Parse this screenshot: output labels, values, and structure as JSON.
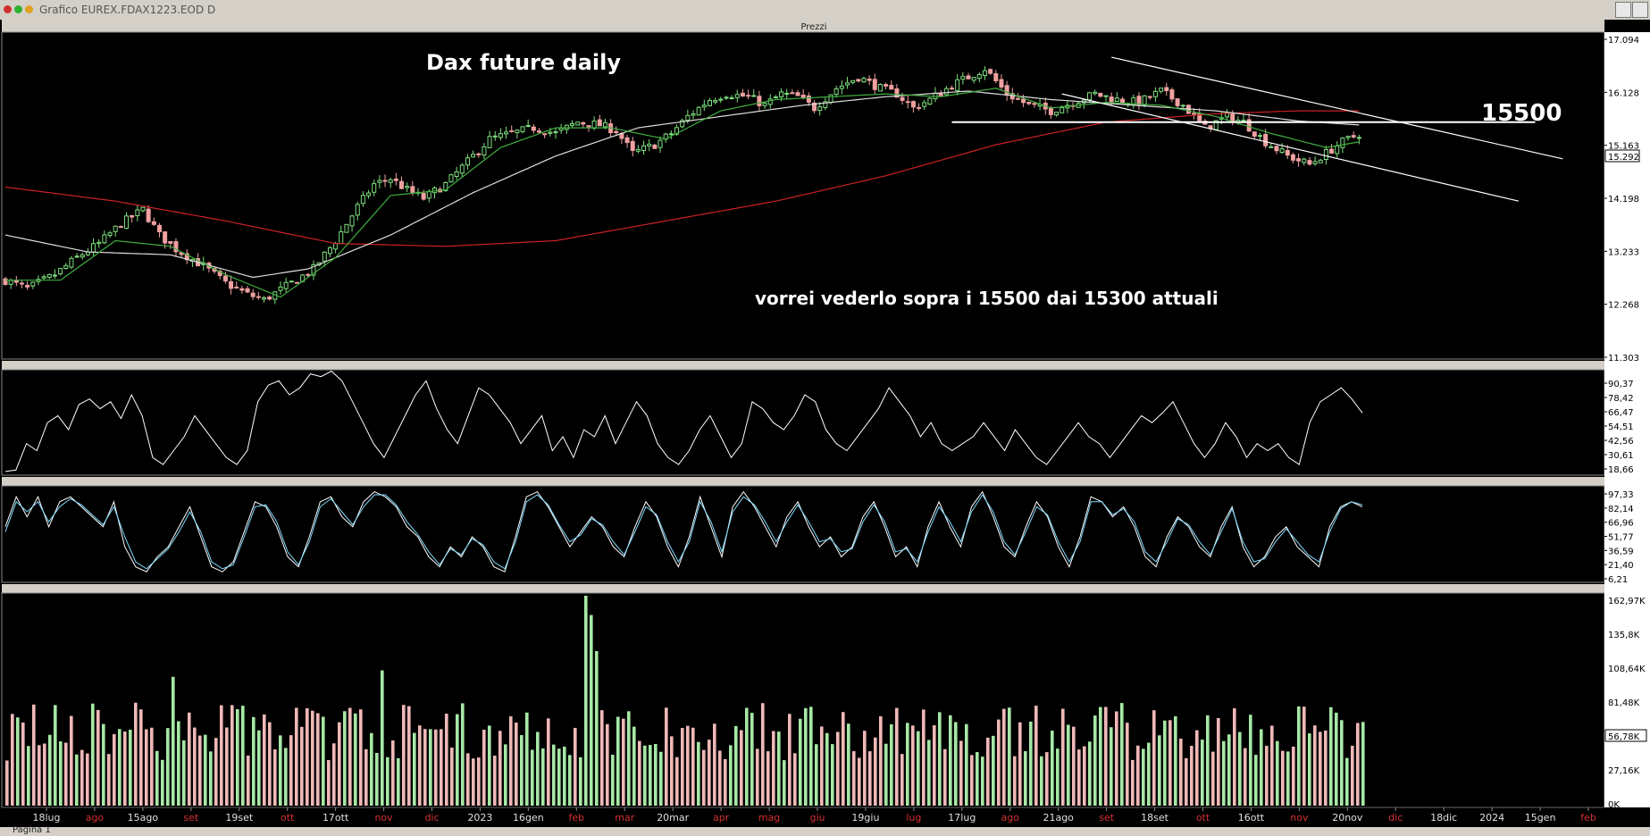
{
  "window": {
    "title": "Grafico EUREX.FDAX1223.EOD D",
    "pane_title": "Prezzi",
    "status": "Pagina 1",
    "colors": {
      "frame": "#d4d0c8",
      "background": "#000000"
    }
  },
  "annotations": {
    "title": "Dax future daily",
    "note": "vorrei vederlo sopra i 15500 dai 15300 attuali",
    "level": "15500"
  },
  "chart_data": [
    {
      "type": "candlestick",
      "title": "Dax future daily",
      "y_ticks": [
        "17.094",
        "16.128",
        "15.292",
        "15.163",
        "14.198",
        "13.233",
        "12.268",
        "11.303"
      ],
      "ylim": [
        11303,
        17094
      ],
      "last_value": "15.292",
      "series_anchors": {
        "close": [
          [
            0,
            12700
          ],
          [
            4,
            12550
          ],
          [
            9,
            12800
          ],
          [
            13,
            13100
          ],
          [
            17,
            13350
          ],
          [
            21,
            13700
          ],
          [
            25,
            13950
          ],
          [
            28,
            13500
          ],
          [
            31,
            13250
          ],
          [
            36,
            12950
          ],
          [
            40,
            12650
          ],
          [
            44,
            12450
          ],
          [
            47,
            12350
          ],
          [
            52,
            12650
          ],
          [
            56,
            12900
          ],
          [
            60,
            13400
          ],
          [
            64,
            14000
          ],
          [
            67,
            14400
          ],
          [
            70,
            14500
          ],
          [
            73,
            14300
          ],
          [
            76,
            14150
          ],
          [
            80,
            14400
          ],
          [
            84,
            14800
          ],
          [
            88,
            15200
          ],
          [
            92,
            15300
          ],
          [
            96,
            15400
          ],
          [
            100,
            15300
          ],
          [
            104,
            15500
          ],
          [
            108,
            15450
          ],
          [
            111,
            15350
          ],
          [
            114,
            14950
          ],
          [
            118,
            15100
          ],
          [
            121,
            15300
          ],
          [
            124,
            15600
          ],
          [
            128,
            15900
          ],
          [
            131,
            16000
          ],
          [
            135,
            15950
          ],
          [
            138,
            15800
          ],
          [
            141,
            16000
          ],
          [
            144,
            15950
          ],
          [
            147,
            15750
          ],
          [
            151,
            16100
          ],
          [
            155,
            16300
          ],
          [
            159,
            16100
          ],
          [
            162,
            16000
          ],
          [
            165,
            15750
          ],
          [
            168,
            15900
          ],
          [
            172,
            16150
          ],
          [
            175,
            16300
          ],
          [
            178,
            16450
          ],
          [
            182,
            16000
          ],
          [
            186,
            15800
          ],
          [
            190,
            15700
          ],
          [
            194,
            15850
          ],
          [
            198,
            16000
          ],
          [
            202,
            15900
          ],
          [
            206,
            15850
          ],
          [
            210,
            16050
          ],
          [
            214,
            15800
          ],
          [
            218,
            15400
          ],
          [
            222,
            15600
          ],
          [
            225,
            15500
          ],
          [
            229,
            15150
          ],
          [
            233,
            14900
          ],
          [
            237,
            14750
          ],
          [
            240,
            14950
          ],
          [
            243,
            15150
          ],
          [
            246,
            15292
          ]
        ],
        "ma_green": [
          [
            0,
            12700
          ],
          [
            10,
            12700
          ],
          [
            20,
            13400
          ],
          [
            30,
            13300
          ],
          [
            40,
            12800
          ],
          [
            50,
            12400
          ],
          [
            60,
            13100
          ],
          [
            70,
            14200
          ],
          [
            80,
            14300
          ],
          [
            90,
            15050
          ],
          [
            100,
            15400
          ],
          [
            110,
            15400
          ],
          [
            120,
            15200
          ],
          [
            130,
            15700
          ],
          [
            140,
            15900
          ],
          [
            150,
            15950
          ],
          [
            160,
            16000
          ],
          [
            170,
            15950
          ],
          [
            180,
            16100
          ],
          [
            190,
            15750
          ],
          [
            200,
            15850
          ],
          [
            210,
            15800
          ],
          [
            220,
            15600
          ],
          [
            230,
            15300
          ],
          [
            240,
            15050
          ],
          [
            246,
            15150
          ]
        ],
        "ma_white": [
          [
            0,
            13500
          ],
          [
            15,
            13200
          ],
          [
            30,
            13150
          ],
          [
            45,
            12750
          ],
          [
            55,
            12900
          ],
          [
            70,
            13500
          ],
          [
            85,
            14250
          ],
          [
            100,
            14900
          ],
          [
            115,
            15400
          ],
          [
            130,
            15600
          ],
          [
            145,
            15800
          ],
          [
            160,
            15950
          ],
          [
            175,
            16050
          ],
          [
            190,
            15900
          ],
          [
            205,
            15800
          ],
          [
            220,
            15700
          ],
          [
            235,
            15520
          ],
          [
            246,
            15450
          ]
        ],
        "ma_red": [
          [
            0,
            14350
          ],
          [
            20,
            14100
          ],
          [
            40,
            13750
          ],
          [
            60,
            13350
          ],
          [
            80,
            13300
          ],
          [
            100,
            13400
          ],
          [
            120,
            13750
          ],
          [
            140,
            14100
          ],
          [
            160,
            14550
          ],
          [
            180,
            15100
          ],
          [
            200,
            15500
          ],
          [
            220,
            15650
          ],
          [
            235,
            15700
          ],
          [
            246,
            15700
          ]
        ]
      },
      "lines": [
        {
          "name": "level-15500",
          "from": [
            172,
            15500
          ],
          "to": [
            278,
            15500
          ]
        },
        {
          "name": "channel-upper",
          "from": [
            201,
            16650
          ],
          "to": [
            283,
            14850
          ]
        },
        {
          "name": "channel-lower",
          "from": [
            192,
            16000
          ],
          "to": [
            275,
            14100
          ]
        }
      ]
    },
    {
      "type": "line",
      "y_ticks": [
        "90,37",
        "78,42",
        "66,47",
        "54,51",
        "42,56",
        "30,61",
        "18,66"
      ],
      "ylim": [
        18.66,
        90.37
      ],
      "series": [
        {
          "name": "",
          "color": "#ffffff",
          "values": [
            20,
            21,
            40,
            35,
            55,
            60,
            50,
            68,
            72,
            65,
            70,
            58,
            75,
            60,
            30,
            25,
            35,
            45,
            60,
            50,
            40,
            30,
            25,
            35,
            70,
            82,
            85,
            75,
            80,
            90,
            88,
            92,
            85,
            70,
            55,
            40,
            30,
            45,
            60,
            75,
            85,
            65,
            50,
            40,
            60,
            80,
            75,
            65,
            55,
            40,
            50,
            60,
            35,
            45,
            30,
            50,
            45,
            60,
            40,
            55,
            70,
            60,
            40,
            30,
            25,
            35,
            50,
            60,
            45,
            30,
            40,
            70,
            65,
            55,
            50,
            60,
            75,
            70,
            50,
            40,
            35,
            45,
            55,
            65,
            80,
            70,
            60,
            45,
            55,
            40,
            35,
            40,
            45,
            55,
            45,
            35,
            50,
            40,
            30,
            25,
            35,
            45,
            55,
            45,
            40,
            30,
            40,
            50,
            60,
            55,
            62,
            70,
            55,
            40,
            30,
            40,
            55,
            45,
            30,
            40,
            35,
            40,
            30,
            25,
            55,
            70,
            75,
            80,
            72,
            62
          ]
        }
      ]
    },
    {
      "type": "line",
      "y_ticks": [
        "97,33",
        "82,14",
        "66,96",
        "51,77",
        "36,59",
        "21,40",
        "6,21"
      ],
      "ylim": [
        6.21,
        97.33
      ],
      "series": [
        {
          "name": "",
          "color": "#ffffff",
          "values": [
            60,
            90,
            70,
            90,
            60,
            85,
            90,
            80,
            70,
            60,
            85,
            40,
            20,
            15,
            30,
            40,
            60,
            80,
            50,
            20,
            15,
            25,
            55,
            85,
            80,
            60,
            30,
            20,
            50,
            85,
            90,
            70,
            60,
            85,
            95,
            90,
            80,
            60,
            50,
            30,
            20,
            40,
            30,
            50,
            40,
            20,
            15,
            50,
            90,
            95,
            80,
            60,
            40,
            55,
            70,
            60,
            40,
            30,
            60,
            85,
            70,
            40,
            20,
            50,
            90,
            60,
            30,
            80,
            95,
            80,
            60,
            40,
            70,
            85,
            60,
            40,
            50,
            30,
            40,
            70,
            85,
            60,
            30,
            40,
            20,
            60,
            85,
            60,
            40,
            80,
            95,
            70,
            40,
            30,
            60,
            85,
            70,
            40,
            20,
            50,
            90,
            85,
            70,
            80,
            60,
            30,
            20,
            50,
            70,
            60,
            40,
            30,
            60,
            80,
            40,
            20,
            30,
            50,
            60,
            40,
            30,
            20,
            60,
            80,
            85,
            80
          ]
        },
        {
          "name": "",
          "color": "#7fdcff",
          "values": [
            55,
            85,
            75,
            85,
            65,
            80,
            88,
            82,
            72,
            62,
            80,
            50,
            25,
            18,
            28,
            38,
            55,
            75,
            55,
            25,
            18,
            22,
            50,
            80,
            82,
            65,
            35,
            22,
            45,
            80,
            88,
            75,
            62,
            80,
            92,
            92,
            82,
            65,
            52,
            35,
            22,
            38,
            32,
            48,
            42,
            25,
            18,
            45,
            85,
            92,
            82,
            62,
            45,
            52,
            68,
            62,
            45,
            32,
            55,
            80,
            72,
            45,
            25,
            45,
            85,
            65,
            35,
            75,
            90,
            82,
            65,
            45,
            65,
            82,
            65,
            45,
            48,
            35,
            38,
            65,
            82,
            65,
            35,
            38,
            25,
            55,
            80,
            65,
            45,
            75,
            92,
            75,
            45,
            32,
            55,
            80,
            72,
            45,
            25,
            45,
            85,
            85,
            72,
            78,
            65,
            35,
            25,
            45,
            68,
            62,
            45,
            32,
            55,
            78,
            45,
            25,
            28,
            45,
            58,
            45,
            32,
            25,
            55,
            78,
            85,
            82
          ]
        }
      ]
    },
    {
      "type": "bar",
      "y_ticks": [
        "162,97K",
        "135,8K",
        "108,64K",
        "81,48K",
        "56,78K",
        "27,16K",
        "0K"
      ],
      "ylim": [
        0,
        162970
      ],
      "last_value": "56,78K",
      "bar_count": 254
    }
  ],
  "x_axis": {
    "ticks": [
      {
        "label": "18lug",
        "holiday": false
      },
      {
        "label": "ago",
        "holiday": true
      },
      {
        "label": "15ago",
        "holiday": false
      },
      {
        "label": "set",
        "holiday": true
      },
      {
        "label": "19set",
        "holiday": false
      },
      {
        "label": "ott",
        "holiday": true
      },
      {
        "label": "17ott",
        "holiday": false
      },
      {
        "label": "nov",
        "holiday": true
      },
      {
        "label": "dic",
        "holiday": true
      },
      {
        "label": "2023",
        "holiday": false
      },
      {
        "label": "16gen",
        "holiday": false
      },
      {
        "label": "feb",
        "holiday": true
      },
      {
        "label": "mar",
        "holiday": true
      },
      {
        "label": "20mar",
        "holiday": false
      },
      {
        "label": "apr",
        "holiday": true
      },
      {
        "label": "mag",
        "holiday": true
      },
      {
        "label": "giu",
        "holiday": true
      },
      {
        "label": "19giu",
        "holiday": false
      },
      {
        "label": "lug",
        "holiday": true
      },
      {
        "label": "17lug",
        "holiday": false
      },
      {
        "label": "ago",
        "holiday": true
      },
      {
        "label": "21ago",
        "holiday": false
      },
      {
        "label": "set",
        "holiday": true
      },
      {
        "label": "18set",
        "holiday": false
      },
      {
        "label": "ott",
        "holiday": true
      },
      {
        "label": "16ott",
        "holiday": false
      },
      {
        "label": "nov",
        "holiday": true
      },
      {
        "label": "20nov",
        "holiday": false
      },
      {
        "label": "dic",
        "holiday": true
      },
      {
        "label": "18dic",
        "holiday": false
      },
      {
        "label": "2024",
        "holiday": false
      },
      {
        "label": "15gen",
        "holiday": false
      },
      {
        "label": "feb",
        "holiday": true
      }
    ]
  }
}
